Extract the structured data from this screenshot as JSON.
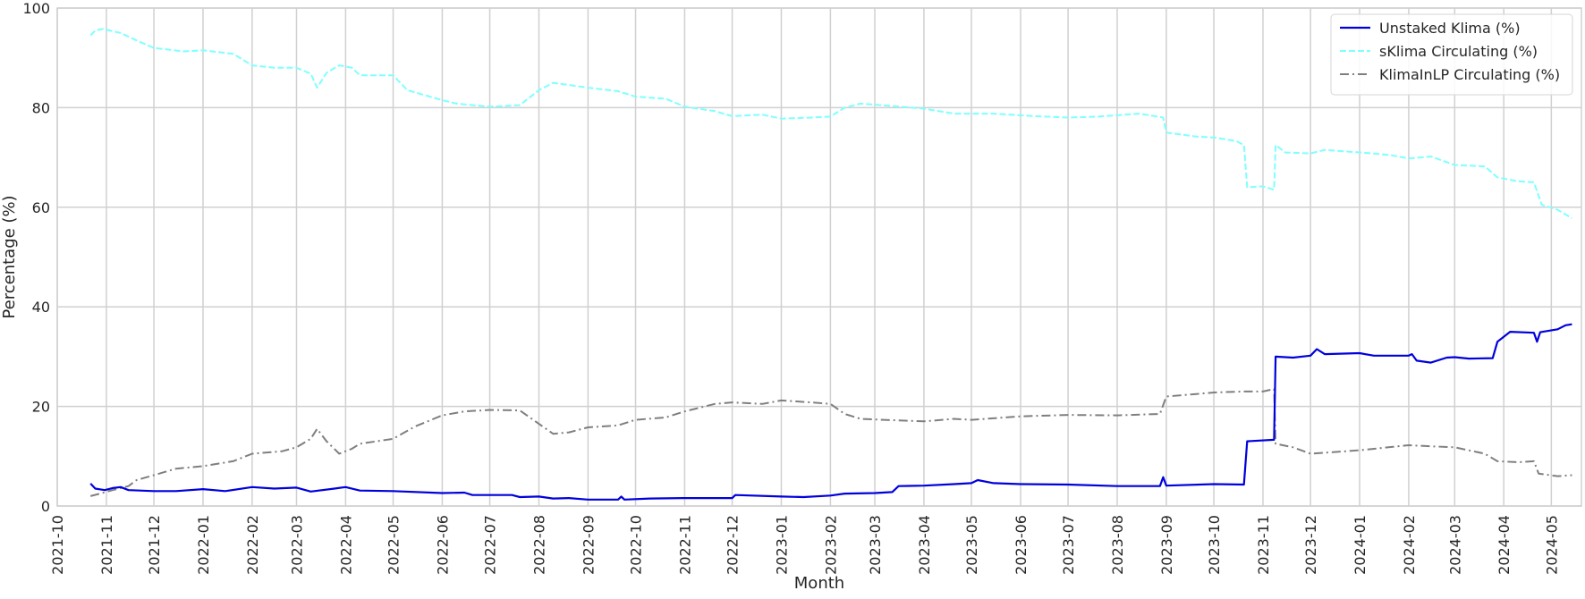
{
  "chart_data": {
    "type": "line",
    "xlabel": "Month",
    "ylabel": "Percentage (%)",
    "ylim": [
      0,
      100
    ],
    "xlim": [
      "2021-10-01",
      "2024-05-20"
    ],
    "y_ticks": [
      0,
      20,
      40,
      60,
      80,
      100
    ],
    "x_ticks": [
      "2021-10",
      "2021-11",
      "2021-12",
      "2022-01",
      "2022-02",
      "2022-03",
      "2022-04",
      "2022-05",
      "2022-06",
      "2022-07",
      "2022-08",
      "2022-09",
      "2022-10",
      "2022-11",
      "2022-12",
      "2023-01",
      "2023-02",
      "2023-03",
      "2023-04",
      "2023-05",
      "2023-06",
      "2023-07",
      "2023-08",
      "2023-09",
      "2023-10",
      "2023-11",
      "2023-12",
      "2024-01",
      "2024-02",
      "2024-03",
      "2024-04",
      "2024-05"
    ],
    "grid": true,
    "legend": {
      "placement": "top-right",
      "entries": [
        "Unstaked Klima (%)",
        "sKlima Circulating (%)",
        "KlimaInLP Circulating (%)"
      ]
    },
    "series": [
      {
        "name": "Unstaked Klima (%)",
        "color": "#0000dd",
        "style": "solid",
        "points": [
          [
            "2021-10-22",
            4.5
          ],
          [
            "2021-10-25",
            3.5
          ],
          [
            "2021-10-31",
            3.2
          ],
          [
            "2021-11-05",
            3.6
          ],
          [
            "2021-11-10",
            3.8
          ],
          [
            "2021-11-15",
            3.2
          ],
          [
            "2021-12-01",
            3.0
          ],
          [
            "2021-12-15",
            3.0
          ],
          [
            "2022-01-01",
            3.4
          ],
          [
            "2022-01-15",
            3.0
          ],
          [
            "2022-02-01",
            3.8
          ],
          [
            "2022-02-15",
            3.5
          ],
          [
            "2022-03-01",
            3.7
          ],
          [
            "2022-03-10",
            2.9
          ],
          [
            "2022-03-25",
            3.5
          ],
          [
            "2022-04-01",
            3.8
          ],
          [
            "2022-04-10",
            3.1
          ],
          [
            "2022-05-01",
            3.0
          ],
          [
            "2022-06-01",
            2.6
          ],
          [
            "2022-06-15",
            2.7
          ],
          [
            "2022-06-20",
            2.2
          ],
          [
            "2022-07-15",
            2.2
          ],
          [
            "2022-07-20",
            1.8
          ],
          [
            "2022-08-01",
            1.9
          ],
          [
            "2022-08-10",
            1.5
          ],
          [
            "2022-08-20",
            1.6
          ],
          [
            "2022-09-01",
            1.3
          ],
          [
            "2022-09-20",
            1.3
          ],
          [
            "2022-09-22",
            1.9
          ],
          [
            "2022-09-24",
            1.3
          ],
          [
            "2022-10-10",
            1.5
          ],
          [
            "2022-11-01",
            1.6
          ],
          [
            "2022-12-01",
            1.6
          ],
          [
            "2022-12-03",
            2.2
          ],
          [
            "2023-01-01",
            1.9
          ],
          [
            "2023-01-15",
            1.8
          ],
          [
            "2023-02-01",
            2.1
          ],
          [
            "2023-02-10",
            2.5
          ],
          [
            "2023-03-01",
            2.6
          ],
          [
            "2023-03-12",
            2.8
          ],
          [
            "2023-03-16",
            4.0
          ],
          [
            "2023-04-01",
            4.1
          ],
          [
            "2023-04-20",
            4.4
          ],
          [
            "2023-05-01",
            4.6
          ],
          [
            "2023-05-05",
            5.2
          ],
          [
            "2023-05-15",
            4.6
          ],
          [
            "2023-06-01",
            4.4
          ],
          [
            "2023-07-01",
            4.3
          ],
          [
            "2023-08-01",
            4.0
          ],
          [
            "2023-08-28",
            4.0
          ],
          [
            "2023-08-30",
            5.8
          ],
          [
            "2023-09-01",
            4.1
          ],
          [
            "2023-10-01",
            4.4
          ],
          [
            "2023-10-20",
            4.3
          ],
          [
            "2023-10-22",
            13.0
          ],
          [
            "2023-11-08",
            13.3
          ],
          [
            "2023-11-09",
            30.0
          ],
          [
            "2023-11-20",
            29.8
          ],
          [
            "2023-12-01",
            30.2
          ],
          [
            "2023-12-05",
            31.5
          ],
          [
            "2023-12-10",
            30.5
          ],
          [
            "2024-01-01",
            30.7
          ],
          [
            "2024-01-10",
            30.2
          ],
          [
            "2024-02-01",
            30.2
          ],
          [
            "2024-02-03",
            30.5
          ],
          [
            "2024-02-06",
            29.2
          ],
          [
            "2024-02-15",
            28.8
          ],
          [
            "2024-02-25",
            29.8
          ],
          [
            "2024-03-01",
            29.9
          ],
          [
            "2024-03-10",
            29.6
          ],
          [
            "2024-03-25",
            29.7
          ],
          [
            "2024-03-28",
            33.0
          ],
          [
            "2024-04-05",
            35.0
          ],
          [
            "2024-04-20",
            34.8
          ],
          [
            "2024-04-22",
            33.0
          ],
          [
            "2024-04-24",
            34.9
          ],
          [
            "2024-05-05",
            35.5
          ],
          [
            "2024-05-10",
            36.3
          ],
          [
            "2024-05-14",
            36.5
          ]
        ]
      },
      {
        "name": "sKlima Circulating (%)",
        "color": "#7fffff",
        "style": "dashed",
        "points": [
          [
            "2021-10-22",
            94.5
          ],
          [
            "2021-10-25",
            95.5
          ],
          [
            "2021-10-30",
            95.8
          ],
          [
            "2021-11-10",
            95.0
          ],
          [
            "2021-11-20",
            93.5
          ],
          [
            "2021-12-01",
            92.0
          ],
          [
            "2021-12-20",
            91.3
          ],
          [
            "2022-01-01",
            91.5
          ],
          [
            "2022-01-20",
            90.8
          ],
          [
            "2022-02-01",
            88.5
          ],
          [
            "2022-02-15",
            88.0
          ],
          [
            "2022-03-01",
            88.0
          ],
          [
            "2022-03-10",
            86.8
          ],
          [
            "2022-03-14",
            84.0
          ],
          [
            "2022-03-20",
            87.0
          ],
          [
            "2022-03-28",
            88.5
          ],
          [
            "2022-04-05",
            88.0
          ],
          [
            "2022-04-10",
            86.5
          ],
          [
            "2022-05-01",
            86.5
          ],
          [
            "2022-05-10",
            83.5
          ],
          [
            "2022-06-01",
            81.5
          ],
          [
            "2022-06-10",
            80.8
          ],
          [
            "2022-07-01",
            80.2
          ],
          [
            "2022-07-20",
            80.5
          ],
          [
            "2022-08-01",
            83.5
          ],
          [
            "2022-08-10",
            85.0
          ],
          [
            "2022-09-01",
            84.0
          ],
          [
            "2022-09-20",
            83.3
          ],
          [
            "2022-10-01",
            82.2
          ],
          [
            "2022-10-20",
            81.8
          ],
          [
            "2022-11-01",
            80.2
          ],
          [
            "2022-11-20",
            79.3
          ],
          [
            "2022-12-01",
            78.3
          ],
          [
            "2022-12-20",
            78.6
          ],
          [
            "2023-01-01",
            77.8
          ],
          [
            "2023-01-20",
            78.0
          ],
          [
            "2023-02-01",
            78.2
          ],
          [
            "2023-02-10",
            80.0
          ],
          [
            "2023-02-20",
            80.8
          ],
          [
            "2023-03-05",
            80.5
          ],
          [
            "2023-04-01",
            79.8
          ],
          [
            "2023-04-20",
            78.8
          ],
          [
            "2023-05-15",
            78.8
          ],
          [
            "2023-06-10",
            78.3
          ],
          [
            "2023-07-01",
            78.0
          ],
          [
            "2023-07-20",
            78.2
          ],
          [
            "2023-08-15",
            78.8
          ],
          [
            "2023-08-30",
            78.0
          ],
          [
            "2023-09-01",
            75.0
          ],
          [
            "2023-09-20",
            74.2
          ],
          [
            "2023-10-01",
            74.0
          ],
          [
            "2023-10-15",
            73.3
          ],
          [
            "2023-10-20",
            72.5
          ],
          [
            "2023-10-22",
            64.0
          ],
          [
            "2023-11-01",
            64.2
          ],
          [
            "2023-11-08",
            63.5
          ],
          [
            "2023-11-09",
            72.5
          ],
          [
            "2023-11-15",
            71.0
          ],
          [
            "2023-12-01",
            70.8
          ],
          [
            "2023-12-10",
            71.5
          ],
          [
            "2024-01-01",
            71.0
          ],
          [
            "2024-01-20",
            70.5
          ],
          [
            "2024-02-01",
            69.8
          ],
          [
            "2024-02-15",
            70.2
          ],
          [
            "2024-03-01",
            68.5
          ],
          [
            "2024-03-20",
            68.2
          ],
          [
            "2024-03-28",
            66.0
          ],
          [
            "2024-04-10",
            65.2
          ],
          [
            "2024-04-20",
            65.0
          ],
          [
            "2024-04-25",
            60.5
          ],
          [
            "2024-05-05",
            59.5
          ],
          [
            "2024-05-14",
            57.8
          ]
        ]
      },
      {
        "name": "KlimaInLP Circulating (%)",
        "color": "#7f7f7f",
        "style": "dashdot",
        "points": [
          [
            "2021-10-22",
            2.0
          ],
          [
            "2021-10-28",
            2.5
          ],
          [
            "2021-11-05",
            3.2
          ],
          [
            "2021-11-15",
            4.0
          ],
          [
            "2021-11-20",
            5.2
          ],
          [
            "2021-12-01",
            6.2
          ],
          [
            "2021-12-15",
            7.5
          ],
          [
            "2022-01-01",
            8.0
          ],
          [
            "2022-01-20",
            9.0
          ],
          [
            "2022-02-01",
            10.5
          ],
          [
            "2022-02-20",
            11.0
          ],
          [
            "2022-03-01",
            11.8
          ],
          [
            "2022-03-10",
            13.5
          ],
          [
            "2022-03-14",
            15.5
          ],
          [
            "2022-03-20",
            13.0
          ],
          [
            "2022-03-28",
            10.5
          ],
          [
            "2022-04-05",
            11.5
          ],
          [
            "2022-04-10",
            12.5
          ],
          [
            "2022-05-01",
            13.5
          ],
          [
            "2022-05-15",
            16.0
          ],
          [
            "2022-06-01",
            18.2
          ],
          [
            "2022-06-15",
            19.0
          ],
          [
            "2022-07-01",
            19.3
          ],
          [
            "2022-07-20",
            19.2
          ],
          [
            "2022-08-01",
            16.5
          ],
          [
            "2022-08-10",
            14.5
          ],
          [
            "2022-08-20",
            14.8
          ],
          [
            "2022-09-01",
            15.8
          ],
          [
            "2022-09-20",
            16.2
          ],
          [
            "2022-10-01",
            17.3
          ],
          [
            "2022-10-20",
            17.8
          ],
          [
            "2022-11-01",
            19.0
          ],
          [
            "2022-11-20",
            20.5
          ],
          [
            "2022-12-01",
            20.8
          ],
          [
            "2022-12-20",
            20.5
          ],
          [
            "2023-01-01",
            21.2
          ],
          [
            "2023-01-20",
            20.8
          ],
          [
            "2023-02-01",
            20.5
          ],
          [
            "2023-02-10",
            18.5
          ],
          [
            "2023-02-20",
            17.5
          ],
          [
            "2023-03-15",
            17.2
          ],
          [
            "2023-04-01",
            17.0
          ],
          [
            "2023-04-20",
            17.5
          ],
          [
            "2023-05-01",
            17.3
          ],
          [
            "2023-06-01",
            18.0
          ],
          [
            "2023-07-01",
            18.3
          ],
          [
            "2023-08-01",
            18.2
          ],
          [
            "2023-08-28",
            18.5
          ],
          [
            "2023-09-01",
            22.0
          ],
          [
            "2023-09-20",
            22.5
          ],
          [
            "2023-10-01",
            22.8
          ],
          [
            "2023-10-20",
            23.0
          ],
          [
            "2023-11-01",
            23.0
          ],
          [
            "2023-11-08",
            23.5
          ],
          [
            "2023-11-09",
            12.5
          ],
          [
            "2023-11-20",
            11.8
          ],
          [
            "2023-12-01",
            10.5
          ],
          [
            "2023-12-15",
            10.8
          ],
          [
            "2024-01-01",
            11.2
          ],
          [
            "2024-02-01",
            12.2
          ],
          [
            "2024-02-15",
            12.0
          ],
          [
            "2024-03-01",
            11.8
          ],
          [
            "2024-03-20",
            10.5
          ],
          [
            "2024-03-28",
            9.0
          ],
          [
            "2024-04-10",
            8.8
          ],
          [
            "2024-04-20",
            9.0
          ],
          [
            "2024-04-23",
            6.5
          ],
          [
            "2024-05-05",
            6.0
          ],
          [
            "2024-05-14",
            6.2
          ]
        ]
      }
    ]
  }
}
